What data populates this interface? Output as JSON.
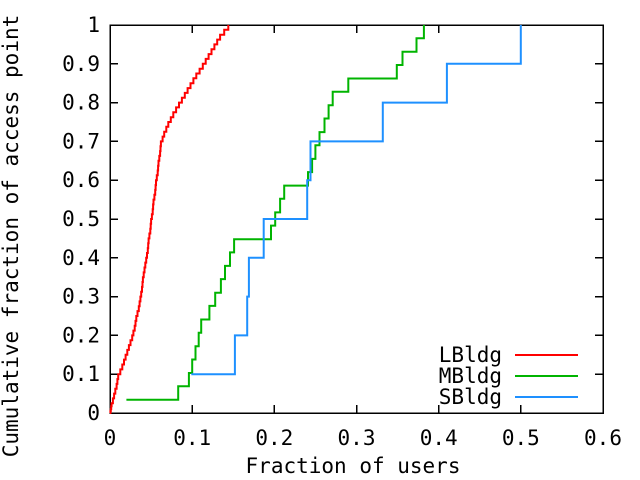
{
  "figure": {
    "background": "#ffffff",
    "axis_color": "#000000",
    "text_color": "#000000"
  },
  "chart_data": {
    "type": "line",
    "subtype": "empirical-cdf-steps",
    "title": "",
    "xlabel": "Fraction of users",
    "ylabel": "Cumulative fraction of access point",
    "xlim": [
      0,
      0.6
    ],
    "ylim": [
      0,
      1
    ],
    "grid": false,
    "x_ticks": {
      "values": [
        0,
        0.1,
        0.2,
        0.3,
        0.4,
        0.5,
        0.6
      ],
      "labels": [
        "0",
        "0.1",
        "0.2",
        "0.3",
        "0.4",
        "0.5",
        "0.6"
      ]
    },
    "y_ticks": {
      "values": [
        0,
        0.1,
        0.2,
        0.3,
        0.4,
        0.5,
        0.6,
        0.7,
        0.8,
        0.9,
        1
      ],
      "labels": [
        "0",
        "0.1",
        "0.2",
        "0.3",
        "0.4",
        "0.5",
        "0.6",
        "0.7",
        "0.8",
        "0.9",
        "1"
      ]
    },
    "legend": {
      "position": "inside-bottom-right",
      "swatch": "line",
      "colored_text": true
    },
    "series": [
      {
        "name": "LBldg",
        "color": "#ff0000",
        "render_substeps": 2,
        "points": [
          [
            0.0,
            0.0
          ],
          [
            0.001,
            0.01
          ],
          [
            0.002,
            0.025
          ],
          [
            0.005,
            0.05
          ],
          [
            0.008,
            0.075
          ],
          [
            0.01,
            0.1
          ],
          [
            0.015,
            0.125
          ],
          [
            0.019,
            0.15
          ],
          [
            0.023,
            0.175
          ],
          [
            0.027,
            0.2
          ],
          [
            0.03,
            0.225
          ],
          [
            0.032,
            0.25
          ],
          [
            0.035,
            0.275
          ],
          [
            0.037,
            0.3
          ],
          [
            0.039,
            0.325
          ],
          [
            0.04,
            0.35
          ],
          [
            0.042,
            0.375
          ],
          [
            0.044,
            0.4
          ],
          [
            0.046,
            0.425
          ],
          [
            0.047,
            0.45
          ],
          [
            0.049,
            0.475
          ],
          [
            0.05,
            0.5
          ],
          [
            0.052,
            0.525
          ],
          [
            0.053,
            0.55
          ],
          [
            0.055,
            0.575
          ],
          [
            0.056,
            0.6
          ],
          [
            0.058,
            0.625
          ],
          [
            0.059,
            0.65
          ],
          [
            0.061,
            0.675
          ],
          [
            0.062,
            0.7
          ],
          [
            0.066,
            0.725
          ],
          [
            0.071,
            0.75
          ],
          [
            0.077,
            0.775
          ],
          [
            0.084,
            0.8
          ],
          [
            0.091,
            0.825
          ],
          [
            0.098,
            0.85
          ],
          [
            0.105,
            0.875
          ],
          [
            0.113,
            0.9
          ],
          [
            0.12,
            0.925
          ],
          [
            0.127,
            0.95
          ],
          [
            0.134,
            0.975
          ],
          [
            0.144,
            1.0
          ]
        ]
      },
      {
        "name": "MBldg",
        "color": "#00b400",
        "render_substeps": 1,
        "points": [
          [
            0.02,
            0.034
          ],
          [
            0.083,
            0.069
          ],
          [
            0.096,
            0.103
          ],
          [
            0.1,
            0.138
          ],
          [
            0.104,
            0.172
          ],
          [
            0.108,
            0.207
          ],
          [
            0.111,
            0.241
          ],
          [
            0.121,
            0.276
          ],
          [
            0.128,
            0.31
          ],
          [
            0.135,
            0.345
          ],
          [
            0.14,
            0.379
          ],
          [
            0.146,
            0.414
          ],
          [
            0.151,
            0.448
          ],
          [
            0.196,
            0.483
          ],
          [
            0.201,
            0.517
          ],
          [
            0.207,
            0.552
          ],
          [
            0.212,
            0.586
          ],
          [
            0.241,
            0.621
          ],
          [
            0.246,
            0.655
          ],
          [
            0.25,
            0.69
          ],
          [
            0.255,
            0.724
          ],
          [
            0.261,
            0.759
          ],
          [
            0.266,
            0.793
          ],
          [
            0.271,
            0.828
          ],
          [
            0.29,
            0.862
          ],
          [
            0.349,
            0.897
          ],
          [
            0.356,
            0.931
          ],
          [
            0.373,
            0.966
          ],
          [
            0.382,
            1.0
          ]
        ]
      },
      {
        "name": "SBldg",
        "color": "#1e90ff",
        "render_substeps": 1,
        "points": [
          [
            0.099,
            0.1
          ],
          [
            0.152,
            0.2
          ],
          [
            0.167,
            0.3
          ],
          [
            0.169,
            0.4
          ],
          [
            0.187,
            0.5
          ],
          [
            0.24,
            0.6
          ],
          [
            0.244,
            0.7
          ],
          [
            0.332,
            0.8
          ],
          [
            0.41,
            0.9
          ],
          [
            0.5,
            1.0
          ]
        ]
      }
    ]
  }
}
